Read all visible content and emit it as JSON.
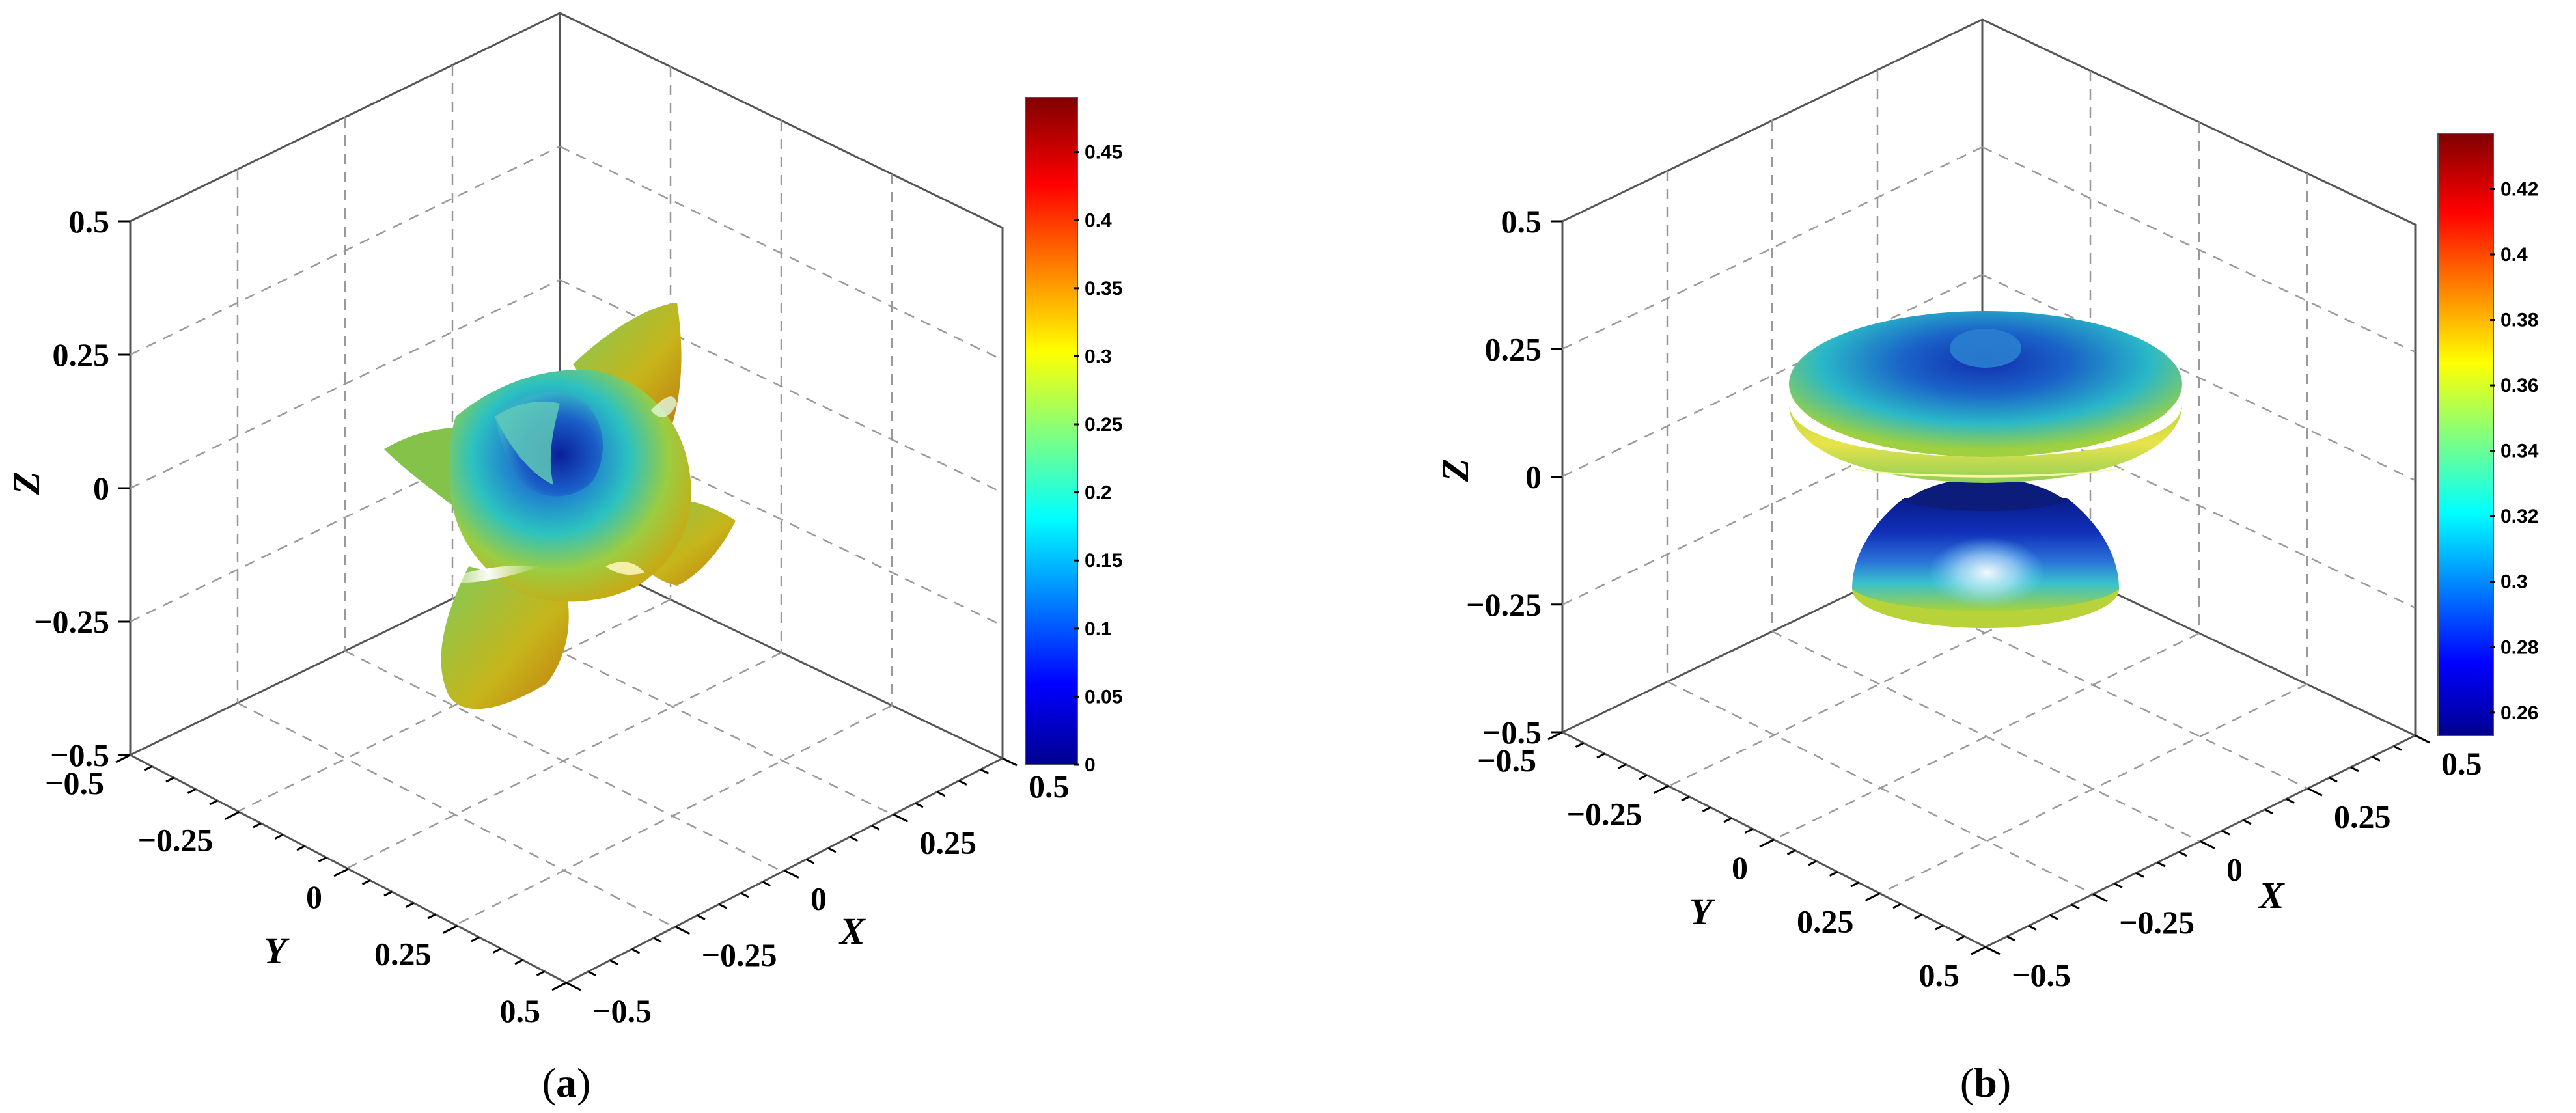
{
  "chart_data": [
    {
      "type": "surface3d",
      "panel": "a",
      "caption": "(a)",
      "xlabel": "X",
      "ylabel": "Y",
      "zlabel": "Z",
      "xlim": [
        -0.5,
        0.5
      ],
      "ylim": [
        -0.5,
        0.5
      ],
      "zlim": [
        -0.5,
        0.5
      ],
      "ticks": {
        "x": [
          "−0.5",
          "−0.25",
          "0",
          "0.25",
          "0.5"
        ],
        "y": [
          "−0.5",
          "−0.25",
          "0",
          "0.25",
          "0.5"
        ],
        "z": [
          "−0.5",
          "−0.25",
          "0",
          "0.25",
          "0.5"
        ]
      },
      "colorbar": {
        "colormap": "jet",
        "range": [
          0,
          0.49
        ],
        "ticks": [
          "0",
          "0.05",
          "0.1",
          "0.15",
          "0.2",
          "0.25",
          "0.3",
          "0.35",
          "0.4",
          "0.45"
        ]
      },
      "grid": true,
      "shape": "star-like lobed surface"
    },
    {
      "type": "surface3d",
      "panel": "b",
      "caption": "(b)",
      "xlabel": "X",
      "ylabel": "Y",
      "zlabel": "Z",
      "xlim": [
        -0.5,
        0.5
      ],
      "ylim": [
        -0.5,
        0.5
      ],
      "zlim": [
        -0.5,
        0.5
      ],
      "ticks": {
        "x": [
          "−0.5",
          "−0.25",
          "0",
          "0.25",
          "0.5"
        ],
        "y": [
          "−0.5",
          "−0.25",
          "0",
          "0.25",
          "0.5"
        ],
        "z": [
          "−0.5",
          "−0.25",
          "0",
          "0.25",
          "0.5"
        ]
      },
      "colorbar": {
        "colormap": "jet",
        "range": [
          0.253,
          0.437
        ],
        "ticks": [
          "0.26",
          "0.28",
          "0.3",
          "0.32",
          "0.34",
          "0.36",
          "0.38",
          "0.4",
          "0.42"
        ]
      },
      "grid": true,
      "shape": "pinched-waist axisymmetric surface"
    }
  ]
}
